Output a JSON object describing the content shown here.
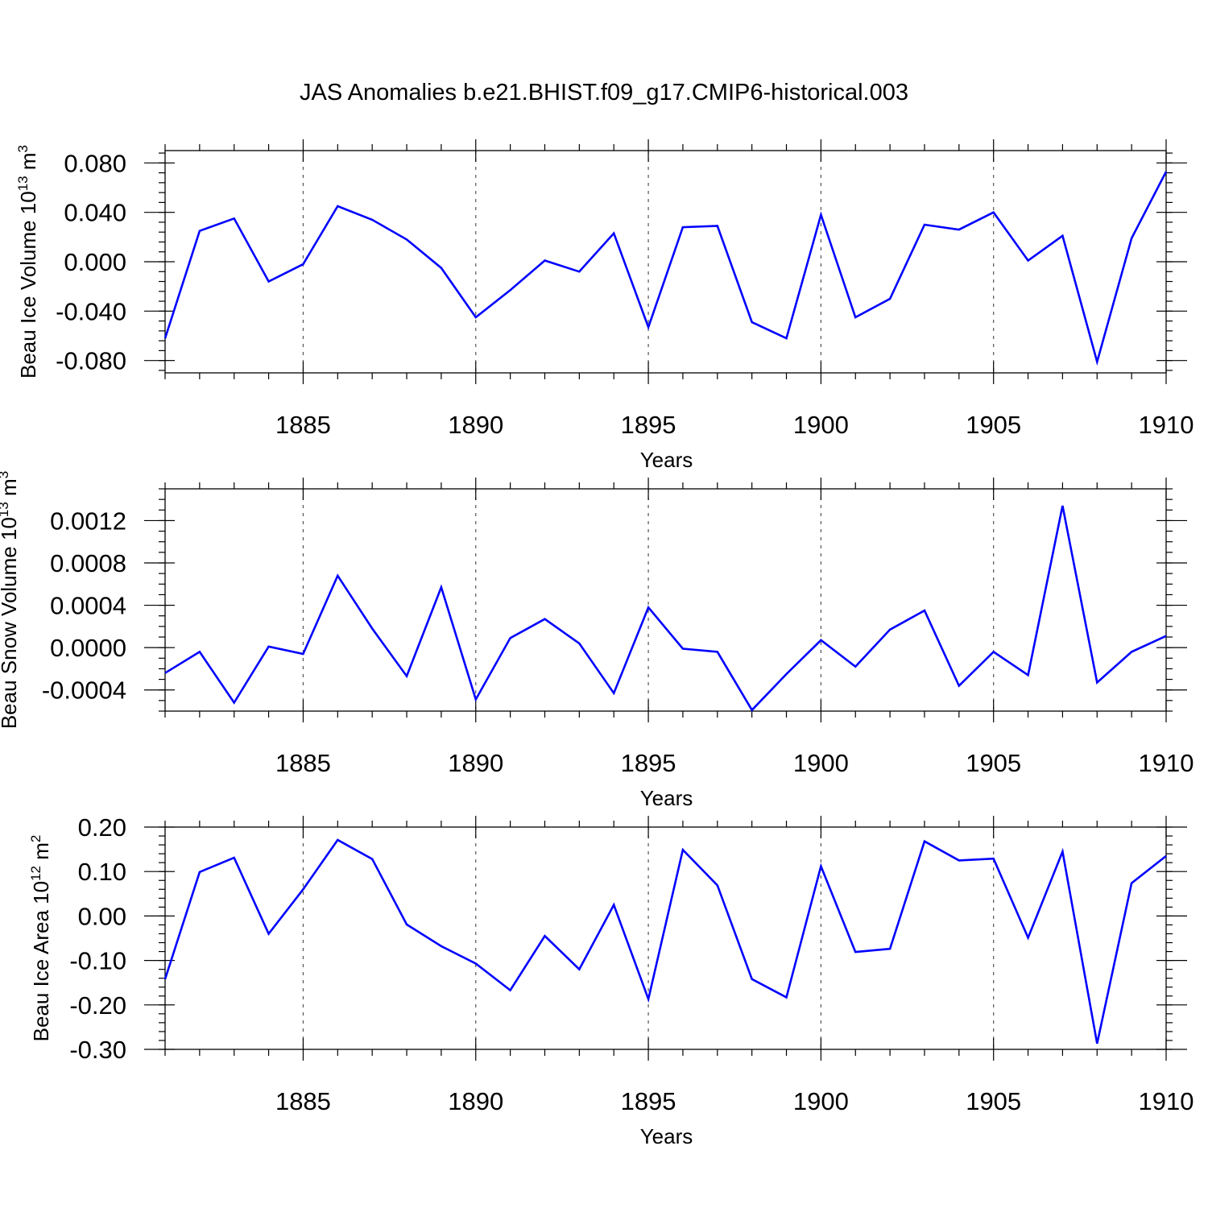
{
  "title": "JAS Anomalies b.e21.BHIST.f09_g17.CMIP6-historical.003",
  "colors": {
    "series": "#0000ff",
    "frame": "#000000",
    "grid": "#555555"
  },
  "chart_data": [
    {
      "type": "line",
      "xlabel": "Years",
      "ylabel": {
        "text": "Beau Ice Volume 10",
        "sup": "13",
        "unit": " m",
        "unit_sup": "3"
      },
      "x": [
        1881,
        1882,
        1883,
        1884,
        1885,
        1886,
        1887,
        1888,
        1889,
        1890,
        1891,
        1892,
        1893,
        1894,
        1895,
        1896,
        1897,
        1898,
        1899,
        1900,
        1901,
        1902,
        1903,
        1904,
        1905,
        1906,
        1907,
        1908,
        1909,
        1910
      ],
      "values": [
        -0.062,
        0.025,
        0.035,
        -0.016,
        -0.002,
        0.045,
        0.034,
        0.018,
        -0.005,
        -0.045,
        -0.023,
        0.001,
        -0.008,
        0.023,
        -0.053,
        0.028,
        0.029,
        -0.049,
        -0.062,
        0.038,
        -0.045,
        -0.03,
        0.03,
        0.026,
        0.04,
        0.001,
        0.021,
        -0.081,
        0.019,
        0.073
      ],
      "xlim": [
        1881,
        1910
      ],
      "ylim": [
        -0.09,
        0.09
      ],
      "xticks": [
        1885,
        1890,
        1895,
        1900,
        1905,
        1910
      ],
      "xtick_labels": [
        "1885",
        "1890",
        "1895",
        "1900",
        "1905",
        "1910"
      ],
      "yticks": [
        -0.08,
        -0.04,
        0.0,
        0.04,
        0.08
      ],
      "ytick_labels": [
        "-0.080",
        "-0.040",
        "0.000",
        "0.040",
        "0.080"
      ],
      "y_minor_step": 0.008,
      "grid": "x-dashed"
    },
    {
      "type": "line",
      "xlabel": "Years",
      "ylabel": {
        "text": "Beau Snow Volume 10",
        "sup": "13",
        "unit": " m",
        "unit_sup": "3"
      },
      "x": [
        1881,
        1882,
        1883,
        1884,
        1885,
        1886,
        1887,
        1888,
        1889,
        1890,
        1891,
        1892,
        1893,
        1894,
        1895,
        1896,
        1897,
        1898,
        1899,
        1900,
        1901,
        1902,
        1903,
        1904,
        1905,
        1906,
        1907,
        1908,
        1909,
        1910
      ],
      "values": [
        -0.00024,
        -4e-05,
        -0.00052,
        1e-05,
        -6e-05,
        0.00068,
        0.00018,
        -0.00027,
        0.00057,
        -0.00049,
        9e-05,
        0.00027,
        4e-05,
        -0.00043,
        0.00038,
        -1e-05,
        -4e-05,
        -0.00059,
        -0.00025,
        7e-05,
        -0.00018,
        0.00017,
        0.00035,
        -0.00036,
        -4e-05,
        -0.00026,
        0.00134,
        -0.00033,
        -4e-05,
        0.00011
      ],
      "xlim": [
        1881,
        1910
      ],
      "ylim": [
        -0.0006,
        0.0015
      ],
      "xticks": [
        1885,
        1890,
        1895,
        1900,
        1905,
        1910
      ],
      "xtick_labels": [
        "1885",
        "1890",
        "1895",
        "1900",
        "1905",
        "1910"
      ],
      "yticks": [
        -0.0004,
        0.0,
        0.0004,
        0.0008,
        0.0012
      ],
      "ytick_labels": [
        "-0.0004",
        "0.0000",
        "0.0004",
        "0.0008",
        "0.0012"
      ],
      "y_minor_step": 0.0001,
      "grid": "x-dashed"
    },
    {
      "type": "line",
      "xlabel": "Years",
      "ylabel": {
        "text": "Beau Ice Area 10",
        "sup": "12",
        "unit": " m",
        "unit_sup": "2"
      },
      "x": [
        1881,
        1882,
        1883,
        1884,
        1885,
        1886,
        1887,
        1888,
        1889,
        1890,
        1891,
        1892,
        1893,
        1894,
        1895,
        1896,
        1897,
        1898,
        1899,
        1900,
        1901,
        1902,
        1903,
        1904,
        1905,
        1906,
        1907,
        1908,
        1909,
        1910
      ],
      "values": [
        -0.142,
        0.099,
        0.131,
        -0.04,
        0.06,
        0.171,
        0.128,
        -0.019,
        -0.068,
        -0.107,
        -0.167,
        -0.045,
        -0.12,
        0.025,
        -0.187,
        0.149,
        0.069,
        -0.142,
        -0.183,
        0.112,
        -0.081,
        -0.074,
        0.168,
        0.125,
        0.129,
        -0.049,
        0.145,
        -0.287,
        0.074,
        0.135
      ],
      "xlim": [
        1881,
        1910
      ],
      "ylim": [
        -0.3,
        0.2
      ],
      "xticks": [
        1885,
        1890,
        1895,
        1900,
        1905,
        1910
      ],
      "xtick_labels": [
        "1885",
        "1890",
        "1895",
        "1900",
        "1905",
        "1910"
      ],
      "yticks": [
        -0.3,
        -0.2,
        -0.1,
        0.0,
        0.1,
        0.2
      ],
      "ytick_labels": [
        "-0.30",
        "-0.20",
        "-0.10",
        "0.00",
        "0.10",
        "0.20"
      ],
      "y_minor_step": 0.02,
      "grid": "x-dashed"
    }
  ]
}
